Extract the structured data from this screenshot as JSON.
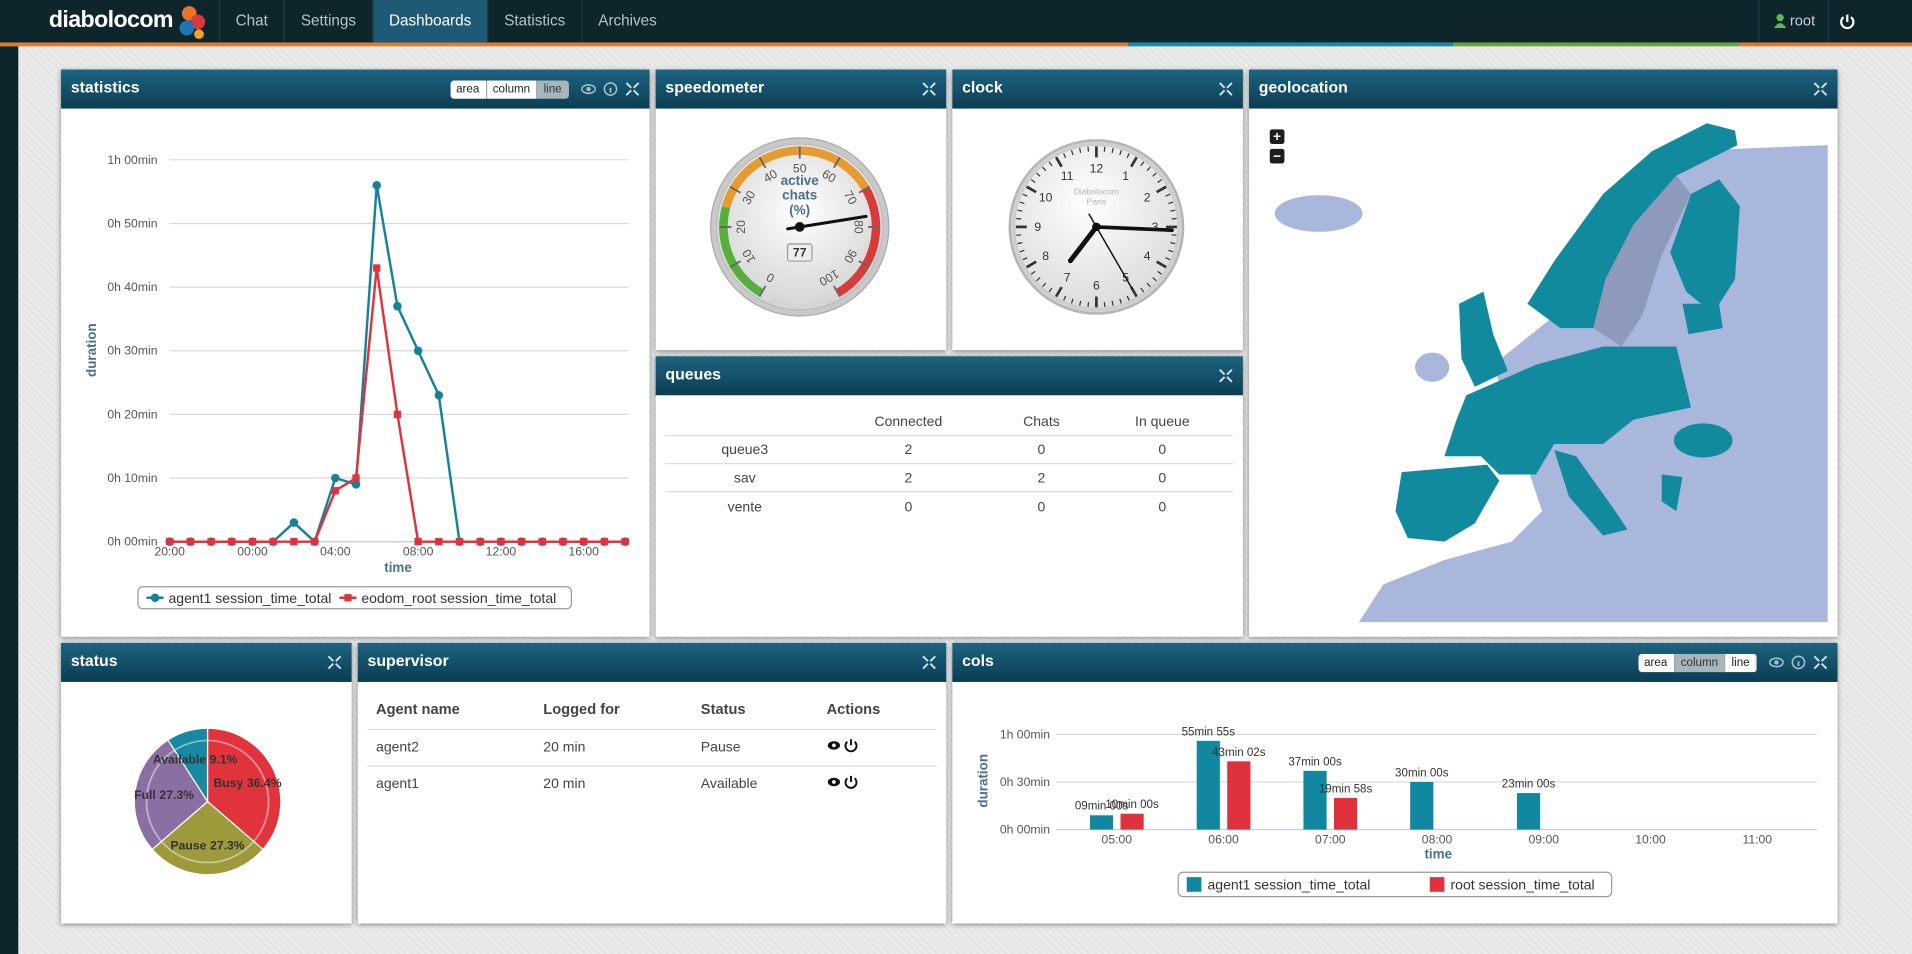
{
  "nav": {
    "brand": "diabolocom",
    "tabs": [
      "Chat",
      "Settings",
      "Dashboards",
      "Statistics",
      "Archives"
    ],
    "active_tab": 2,
    "user": "root"
  },
  "widgets": {
    "statistics": {
      "title": "statistics",
      "buttons": [
        "area",
        "column",
        "line"
      ],
      "active_button": 2
    },
    "speedometer": {
      "title": "speedometer"
    },
    "clock": {
      "title": "clock",
      "face_text": [
        "Diabolocom",
        "Paris"
      ],
      "numbers": [
        12,
        1,
        2,
        3,
        4,
        5,
        6,
        7,
        8,
        9,
        10,
        11
      ],
      "time": {
        "hours": 7,
        "minutes": 15,
        "seconds": 25
      }
    },
    "geolocation": {
      "title": "geolocation",
      "zoom": [
        "+",
        "−"
      ]
    },
    "queues": {
      "title": "queues",
      "table": {
        "headers": [
          "Connected",
          "Chats",
          "In queue"
        ],
        "rows": [
          [
            "queue3",
            2,
            0,
            0
          ],
          [
            "sav",
            2,
            2,
            0
          ],
          [
            "vente",
            0,
            0,
            0
          ]
        ]
      }
    },
    "status": {
      "title": "status"
    },
    "supervisor": {
      "title": "supervisor",
      "table": {
        "headers": [
          "Agent name",
          "Logged for",
          "Status",
          "Actions"
        ],
        "rows": [
          [
            "agent2",
            "20 min",
            "Pause"
          ],
          [
            "agent1",
            "20 min",
            "Available"
          ]
        ]
      }
    },
    "cols": {
      "title": "cols",
      "buttons": [
        "area",
        "column",
        "line"
      ],
      "active_button": 1
    }
  },
  "chart_data": [
    {
      "type": "line",
      "y_label": "duration",
      "x_label": "time",
      "categories": [
        "20:00",
        null,
        null,
        null,
        "00:00",
        null,
        null,
        null,
        "04:00",
        null,
        null,
        null,
        "08:00",
        null,
        null,
        null,
        "12:00",
        null,
        null,
        null,
        "16:00",
        null,
        null
      ],
      "ylim": [
        0,
        60
      ],
      "yticks": [
        {
          "value": 0,
          "label": "0h 00min"
        },
        {
          "value": 10,
          "label": "0h 10min"
        },
        {
          "value": 20,
          "label": "0h 20min"
        },
        {
          "value": 30,
          "label": "0h 30min"
        },
        {
          "value": 40,
          "label": "0h 40min"
        },
        {
          "value": 50,
          "label": "0h 50min"
        },
        {
          "value": 60,
          "label": "1h 00min"
        }
      ],
      "grid": true,
      "legend": "bottom",
      "series": [
        {
          "name": "agent1 session_time_total",
          "color": "#13829a",
          "values": [
            0,
            0,
            0,
            0,
            0,
            0,
            3,
            0,
            10,
            9,
            56,
            37,
            30,
            23,
            0,
            0,
            0,
            0,
            0,
            0,
            0,
            0,
            0
          ]
        },
        {
          "name": "eodom_root session_time_total",
          "color": "#e0323c",
          "values": [
            0,
            0,
            0,
            0,
            0,
            0,
            0,
            0,
            8,
            10,
            43,
            20,
            0,
            0,
            0,
            0,
            0,
            0,
            0,
            0,
            0,
            0,
            0
          ]
        }
      ]
    },
    {
      "type": "gauge",
      "label_lines": [
        "active",
        "chats",
        "(%)"
      ],
      "value": 77,
      "ylim": [
        0,
        100
      ],
      "yticks": [
        0,
        10,
        20,
        30,
        40,
        50,
        60,
        70,
        80,
        90,
        100
      ],
      "bands": [
        {
          "from": 0,
          "to": 25,
          "color": "#55b03b"
        },
        {
          "from": 25,
          "to": 70,
          "color": "#e59b2f"
        },
        {
          "from": 70,
          "to": 100,
          "color": "#d93a3a"
        }
      ]
    },
    {
      "type": "pie",
      "categories": [
        "Busy",
        "Pause",
        "Full",
        "Available"
      ],
      "values": [
        36.4,
        27.3,
        27.3,
        9.1
      ],
      "value_labels": [
        "36.4%",
        "27.3%",
        "27.3%",
        "9.1%"
      ],
      "colors": [
        "#e0333c",
        "#9c9a3a",
        "#8a6fa3",
        "#1789a0"
      ]
    },
    {
      "type": "bar",
      "y_label": "duration",
      "x_label": "time",
      "categories": [
        "05:00",
        "06:00",
        "07:00",
        "08:00",
        "09:00",
        "10:00",
        "11:00"
      ],
      "ylim": [
        0,
        60
      ],
      "yticks": [
        {
          "value": 0,
          "label": "0h 00min"
        },
        {
          "value": 30,
          "label": "0h 30min"
        },
        {
          "value": 60,
          "label": "1h 00min"
        }
      ],
      "grid": true,
      "legend": "bottom",
      "series": [
        {
          "name": "agent1 session_time_total",
          "color": "#1287a0",
          "values": [
            9,
            55.9167,
            37,
            30,
            23,
            null,
            null
          ],
          "value_labels": [
            "09min 00s",
            "55min 55s",
            "37min 00s",
            "30min 00s",
            "23min 00s",
            null,
            null
          ]
        },
        {
          "name": "root session_time_total",
          "color": "#e0323c",
          "values": [
            10,
            43.0333,
            19.9667,
            null,
            null,
            null,
            null
          ],
          "value_labels": [
            "10min 00s",
            "43min 02s",
            "19min 58s",
            null,
            null,
            null,
            null
          ]
        }
      ]
    }
  ]
}
